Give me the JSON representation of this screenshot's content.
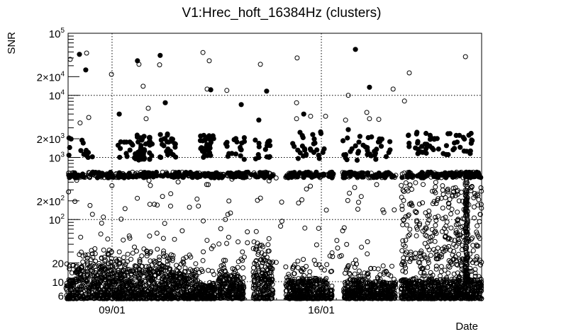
{
  "chart_data": {
    "type": "scatter",
    "title": "V1:Hrec_hoft_16384Hz (clusters)",
    "xlabel": "Date",
    "ylabel": "SNR",
    "x_unit": "days since 09/01",
    "xlim": [
      -1.47,
      12.36
    ],
    "ylim": [
      5.05,
      100000
    ],
    "yscale": "log",
    "grid": true,
    "x_ticks": [
      {
        "value": 0,
        "label": "09/01"
      },
      {
        "value": 7,
        "label": "16/01"
      }
    ],
    "y_ticks": [
      {
        "value": 100000,
        "base": "10",
        "exp": "5"
      },
      {
        "value": 20000,
        "base": "2×10",
        "exp": "4"
      },
      {
        "value": 10000,
        "base": "10",
        "exp": "4"
      },
      {
        "value": 2000,
        "base": "2×10",
        "exp": "3"
      },
      {
        "value": 1000,
        "base": "10",
        "exp": "3"
      },
      {
        "value": 200,
        "base": "2×10",
        "exp": "2"
      },
      {
        "value": 100,
        "base": "10",
        "exp": "2"
      },
      {
        "value": 20,
        "base": "20",
        "exp": ""
      },
      {
        "value": 10,
        "base": "10",
        "exp": ""
      },
      {
        "value": 6,
        "base": "6",
        "exp": ""
      }
    ],
    "series": [
      {
        "name": "filled",
        "marker": "filled-circle",
        "points": [
          [
            -1.09,
            45700
          ],
          [
            -0.88,
            25700
          ],
          [
            0.85,
            36000
          ],
          [
            1.61,
            44000
          ],
          [
            3.3,
            12300
          ],
          [
            5.17,
            11700
          ],
          [
            1.78,
            7600
          ],
          [
            0.24,
            5000
          ],
          [
            4.32,
            7100
          ],
          [
            4.91,
            4000
          ],
          [
            8.14,
            55000
          ],
          [
            8.61,
            13500
          ],
          [
            6.41,
            5000
          ],
          [
            7.9,
            2800
          ]
        ]
      },
      {
        "name": "open",
        "marker": "open-circle",
        "points": [
          [
            -1.4,
            38000
          ],
          [
            -0.85,
            48000
          ],
          [
            -0.02,
            21800
          ],
          [
            0.9,
            31600
          ],
          [
            1.59,
            31000
          ],
          [
            3.04,
            49000
          ],
          [
            3.25,
            36000
          ],
          [
            1.04,
            14000
          ],
          [
            3.18,
            12600
          ],
          [
            3.84,
            12000
          ],
          [
            4.96,
            31600
          ],
          [
            -1.07,
            3600
          ],
          [
            -0.78,
            4400
          ],
          [
            1.21,
            6200
          ],
          [
            1.14,
            4200
          ],
          [
            6.19,
            40000
          ],
          [
            11.82,
            42000
          ],
          [
            9.94,
            23000
          ],
          [
            9.4,
            12600
          ],
          [
            7.9,
            10000
          ],
          [
            9.78,
            8100
          ],
          [
            6.17,
            7600
          ],
          [
            6.17,
            4200
          ],
          [
            6.64,
            4600
          ],
          [
            7.14,
            4600
          ],
          [
            7.81,
            4000
          ],
          [
            8.52,
            5300
          ],
          [
            8.61,
            4200
          ],
          [
            8.92,
            4100
          ]
        ]
      }
    ],
    "dense_regions": {
      "low_snr_segments": [
        [
          -1.54,
          -1.28,
          11
        ],
        [
          -1.23,
          0.2,
          18
        ],
        [
          0.2,
          1.0,
          16
        ],
        [
          1.0,
          2.0,
          19
        ],
        [
          2.0,
          2.8,
          15
        ],
        [
          2.8,
          3.44,
          9
        ],
        [
          3.54,
          4.41,
          13
        ],
        [
          4.72,
          5.39,
          22
        ],
        [
          5.81,
          7.21,
          11
        ],
        [
          7.29,
          7.36,
          9
        ],
        [
          7.74,
          8.47,
          11
        ],
        [
          8.52,
          9.49,
          10
        ],
        [
          9.66,
          12.36,
          11
        ]
      ],
      "open_scatter": [
        [
          -1.5,
          9.5,
          20,
          500,
          130
        ],
        [
          9.66,
          12.36,
          20,
          400,
          260
        ],
        [
          11.8,
          11.9,
          10,
          450,
          130
        ]
      ],
      "filled_clusters": [
        [
          -1.45,
          -1.35,
          900,
          2200,
          4
        ],
        [
          -1.1,
          -0.65,
          1000,
          2000,
          10
        ],
        [
          0.2,
          0.7,
          1000,
          2000,
          12
        ],
        [
          0.75,
          1.35,
          900,
          2300,
          45
        ],
        [
          1.5,
          2.2,
          900,
          2500,
          25
        ],
        [
          2.95,
          3.4,
          1000,
          2300,
          32
        ],
        [
          3.8,
          4.45,
          900,
          2200,
          18
        ],
        [
          4.75,
          5.3,
          900,
          2200,
          15
        ],
        [
          6.0,
          7.1,
          900,
          2600,
          28
        ],
        [
          7.7,
          9.3,
          900,
          2200,
          38
        ],
        [
          9.9,
          12.36,
          1100,
          2600,
          55
        ]
      ],
      "snr_500_band": [
        [
          -1.5,
          5.4
        ],
        [
          5.8,
          7.4
        ],
        [
          7.7,
          9.5
        ],
        [
          9.66,
          12.36
        ]
      ]
    }
  }
}
